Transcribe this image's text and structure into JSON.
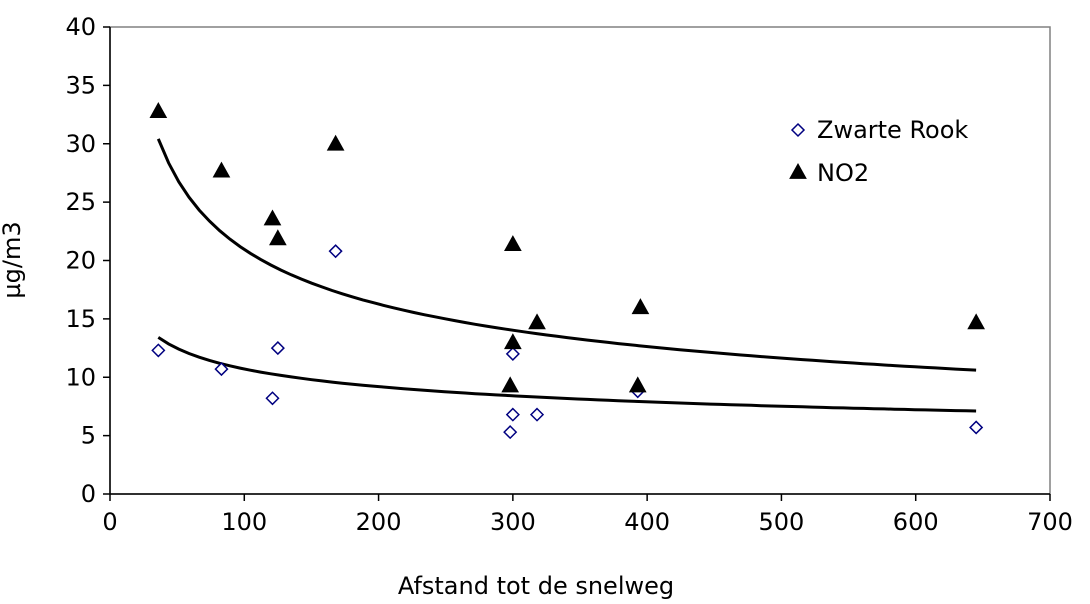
{
  "chart_data": {
    "type": "scatter",
    "title": "",
    "xlabel": "Afstand tot de snelweg",
    "ylabel": "µg/m3",
    "xlim": [
      0,
      700
    ],
    "ylim": [
      0,
      40
    ],
    "x_ticks": [
      0,
      100,
      200,
      300,
      400,
      500,
      600,
      700
    ],
    "y_ticks": [
      0,
      5,
      10,
      15,
      20,
      25,
      30,
      35,
      40
    ],
    "grid": false,
    "legend_position": "top-right",
    "series": [
      {
        "name": "Zwarte Rook",
        "marker": "open-diamond",
        "color": "#000080",
        "points": [
          {
            "x": 36,
            "y": 12.3
          },
          {
            "x": 83,
            "y": 10.7
          },
          {
            "x": 121,
            "y": 8.2
          },
          {
            "x": 125,
            "y": 12.5
          },
          {
            "x": 168,
            "y": 20.8
          },
          {
            "x": 298,
            "y": 5.3
          },
          {
            "x": 300,
            "y": 12.0
          },
          {
            "x": 300,
            "y": 6.8
          },
          {
            "x": 318,
            "y": 6.8
          },
          {
            "x": 393,
            "y": 8.8
          },
          {
            "x": 645,
            "y": 5.7
          }
        ],
        "trendline": {
          "type": "power",
          "x_range": [
            36,
            645
          ],
          "a": 29.5,
          "b": -0.22,
          "color": "#000000"
        }
      },
      {
        "name": "NO2",
        "marker": "filled-triangle",
        "color": "#000000",
        "points": [
          {
            "x": 36,
            "y": 32.8
          },
          {
            "x": 83,
            "y": 27.7
          },
          {
            "x": 121,
            "y": 23.6
          },
          {
            "x": 125,
            "y": 21.9
          },
          {
            "x": 168,
            "y": 30.0
          },
          {
            "x": 298,
            "y": 9.3
          },
          {
            "x": 300,
            "y": 21.4
          },
          {
            "x": 300,
            "y": 13.0
          },
          {
            "x": 318,
            "y": 14.7
          },
          {
            "x": 393,
            "y": 9.3
          },
          {
            "x": 395,
            "y": 16.0
          },
          {
            "x": 645,
            "y": 14.7
          }
        ],
        "trendline": {
          "type": "power",
          "x_range": [
            36,
            645
          ],
          "a": 112.5,
          "b": -0.365,
          "color": "#000000"
        }
      }
    ]
  }
}
